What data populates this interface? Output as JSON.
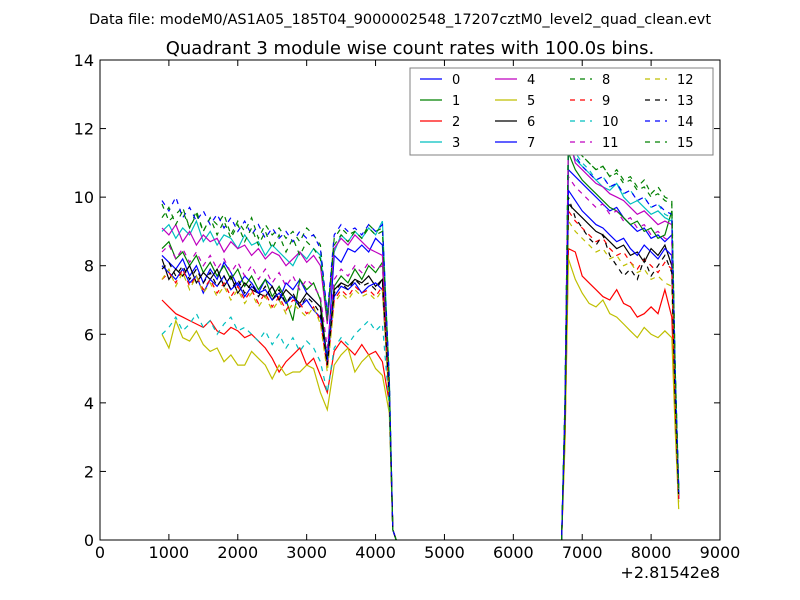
{
  "header": {
    "file_label": "Data file: modeM0/AS1A05_185T04_9000002548_17207cztM0_level2_quad_clean.evt",
    "title": "Quadrant 3 module wise count rates with 100.0s bins."
  },
  "chart_data": {
    "type": "line",
    "title": "Quadrant 3 module wise count rates with 100.0s bins.",
    "xlabel": "",
    "ylabel": "",
    "x_offset_label": "+2.81542e8",
    "xlim": [
      0,
      9000
    ],
    "ylim": [
      0,
      14
    ],
    "x_ticks": [
      0,
      1000,
      2000,
      3000,
      4000,
      5000,
      6000,
      7000,
      8000,
      9000
    ],
    "y_ticks": [
      0,
      2,
      4,
      6,
      8,
      10,
      12,
      14
    ],
    "grid": false,
    "legend_position": "top-right",
    "legend_columns": 4,
    "segment_x": [
      [
        900,
        1000,
        1100,
        1200,
        1300,
        1400,
        1500,
        1600,
        1700,
        1800,
        1900,
        2000,
        2100,
        2200,
        2300,
        2400,
        2500,
        2600,
        2700,
        2800,
        2900,
        3000,
        3100,
        3200,
        3300,
        3400,
        3500,
        3600,
        3700,
        3800,
        3900,
        4000,
        4100,
        4200,
        4250,
        4300
      ],
      [
        6700,
        6750,
        6800,
        6900,
        7000,
        7100,
        7200,
        7300,
        7400,
        7500,
        7600,
        7700,
        7800,
        7900,
        8000,
        8100,
        8200,
        8300,
        8350,
        8400
      ]
    ],
    "series": [
      {
        "name": "0",
        "color": "#0000ff",
        "dash": false,
        "segments": [
          [
            8.3,
            8.1,
            7.9,
            8.2,
            7.7,
            8.0,
            7.5,
            7.9,
            7.6,
            8.1,
            7.8,
            7.4,
            7.7,
            7.5,
            7.2,
            7.6,
            7.4,
            7.0,
            7.5,
            7.3,
            7.6,
            7.2,
            7.0,
            6.8,
            5.3,
            8.3,
            8.1,
            8.5,
            8.4,
            8.6,
            8.4,
            8.8,
            8.6,
            4.4,
            0.3,
            0
          ],
          [
            0,
            3.8,
            10.8,
            10.6,
            10.4,
            10.2,
            10.0,
            9.8,
            9.6,
            9.7,
            9.4,
            9.2,
            9.0,
            9.1,
            8.8,
            8.9,
            8.7,
            8.9,
            4.5,
            1.6
          ]
        ]
      },
      {
        "name": "1",
        "color": "#008000",
        "dash": false,
        "segments": [
          [
            8.5,
            8.7,
            8.2,
            8.4,
            8.0,
            8.3,
            7.8,
            8.1,
            7.7,
            8.0,
            7.6,
            7.9,
            7.4,
            7.7,
            7.3,
            7.6,
            7.1,
            7.4,
            7.0,
            6.4,
            7.6,
            7.3,
            7.5,
            7.0,
            5.2,
            7.4,
            7.7,
            7.5,
            7.9,
            7.6,
            8.0,
            7.8,
            8.1,
            4.3,
            0.3,
            0
          ],
          [
            0,
            3.9,
            11.3,
            10.8,
            10.5,
            10.3,
            10.1,
            9.9,
            9.7,
            9.6,
            9.4,
            9.2,
            9.3,
            9.0,
            9.1,
            8.8,
            8.9,
            9.6,
            5.0,
            1.3
          ]
        ]
      },
      {
        "name": "2",
        "color": "#ff0000",
        "dash": false,
        "segments": [
          [
            7.0,
            6.8,
            6.6,
            6.5,
            6.4,
            6.3,
            6.2,
            6.4,
            6.1,
            6.0,
            6.2,
            6.1,
            5.9,
            6.0,
            5.8,
            5.6,
            5.3,
            4.9,
            5.2,
            5.4,
            5.6,
            5.1,
            5.3,
            4.8,
            4.3,
            5.5,
            5.8,
            5.6,
            5.4,
            5.7,
            5.4,
            5.5,
            5.2,
            4.0,
            0.3,
            0
          ],
          [
            0,
            3.0,
            8.5,
            8.4,
            7.7,
            7.5,
            7.3,
            7.1,
            7.0,
            7.3,
            6.9,
            6.8,
            6.5,
            6.6,
            6.8,
            6.6,
            7.3,
            6.5,
            3.7,
            1.2
          ]
        ]
      },
      {
        "name": "3",
        "color": "#00bfbf",
        "dash": false,
        "segments": [
          [
            9.0,
            9.2,
            8.8,
            9.1,
            8.9,
            9.3,
            8.7,
            9.0,
            8.6,
            8.9,
            8.8,
            8.5,
            8.9,
            8.6,
            8.7,
            8.3,
            8.6,
            8.4,
            8.2,
            8.0,
            8.4,
            8.2,
            8.5,
            8.3,
            6.6,
            8.4,
            8.9,
            8.7,
            9.0,
            8.8,
            9.1,
            8.9,
            9.3,
            4.7,
            0.3,
            0
          ],
          [
            0,
            4.0,
            11.6,
            11.1,
            10.9,
            10.7,
            10.5,
            10.3,
            10.2,
            10.4,
            10.0,
            9.8,
            9.9,
            9.7,
            9.5,
            9.6,
            9.4,
            9.3,
            4.8,
            1.4
          ]
        ]
      },
      {
        "name": "4",
        "color": "#bf00bf",
        "dash": false,
        "segments": [
          [
            9.1,
            8.9,
            9.2,
            8.7,
            9.0,
            8.6,
            8.9,
            8.7,
            8.8,
            8.4,
            8.7,
            8.5,
            8.6,
            8.3,
            8.5,
            8.2,
            8.4,
            8.3,
            8.0,
            8.2,
            8.4,
            8.1,
            8.3,
            8.0,
            6.3,
            8.5,
            8.8,
            8.6,
            8.9,
            8.7,
            8.5,
            8.4,
            8.3,
            4.4,
            0.3,
            0
          ],
          [
            0,
            4.0,
            11.8,
            11.0,
            10.8,
            10.6,
            10.4,
            10.3,
            10.1,
            10.0,
            9.9,
            9.7,
            9.5,
            9.6,
            9.4,
            9.2,
            9.3,
            9.2,
            4.7,
            1.5
          ]
        ]
      },
      {
        "name": "5",
        "color": "#bfbf00",
        "dash": false,
        "segments": [
          [
            6.0,
            5.6,
            6.4,
            5.9,
            5.8,
            6.1,
            5.7,
            5.5,
            5.6,
            5.2,
            5.4,
            5.1,
            5.1,
            5.5,
            5.3,
            5.1,
            4.7,
            5.1,
            4.8,
            4.9,
            4.9,
            5.1,
            5.0,
            4.3,
            3.8,
            5.1,
            5.4,
            5.6,
            4.9,
            5.2,
            5.4,
            5.0,
            4.8,
            3.7,
            0.3,
            0
          ],
          [
            0,
            2.8,
            8.2,
            7.6,
            7.2,
            6.9,
            6.8,
            7.0,
            6.6,
            6.5,
            6.3,
            6.1,
            5.9,
            6.2,
            6.0,
            5.9,
            6.1,
            5.9,
            3.2,
            0.9
          ]
        ]
      },
      {
        "name": "6",
        "color": "#000000",
        "dash": false,
        "segments": [
          [
            8.2,
            7.6,
            7.9,
            7.7,
            8.0,
            7.5,
            7.8,
            7.6,
            7.9,
            7.4,
            7.7,
            7.2,
            7.5,
            7.3,
            7.2,
            7.1,
            7.4,
            7.0,
            7.3,
            7.1,
            6.9,
            7.2,
            7.0,
            6.8,
            5.1,
            7.3,
            7.5,
            7.4,
            7.6,
            7.5,
            7.7,
            7.4,
            7.6,
            4.2,
            0.3,
            0
          ],
          [
            0,
            3.5,
            9.8,
            9.6,
            9.4,
            9.2,
            9.0,
            8.9,
            8.7,
            8.5,
            8.6,
            8.3,
            8.4,
            8.1,
            8.5,
            8.3,
            8.6,
            8.0,
            4.2,
            1.3
          ]
        ]
      },
      {
        "name": "7",
        "color": "#0000ff",
        "dash": false,
        "segments": [
          [
            8.0,
            7.8,
            7.6,
            7.9,
            7.5,
            7.7,
            7.2,
            7.6,
            7.4,
            7.7,
            7.3,
            7.5,
            7.1,
            7.4,
            7.2,
            7.3,
            7.0,
            7.2,
            6.9,
            7.1,
            6.8,
            7.0,
            6.7,
            6.5,
            5.2,
            7.1,
            7.4,
            7.3,
            7.5,
            7.2,
            7.4,
            7.5,
            7.3,
            4.1,
            0.3,
            0
          ],
          [
            0,
            3.6,
            10.2,
            9.9,
            9.6,
            9.4,
            9.2,
            9.1,
            8.9,
            8.7,
            8.8,
            8.5,
            8.3,
            8.6,
            8.4,
            8.2,
            8.5,
            8.3,
            4.3,
            1.2
          ]
        ]
      },
      {
        "name": "8",
        "color": "#008000",
        "dash": true,
        "segments": [
          [
            9.8,
            9.3,
            9.5,
            9.7,
            9.1,
            9.6,
            9.0,
            9.4,
            9.2,
            9.5,
            8.9,
            9.3,
            9.0,
            9.4,
            8.8,
            9.2,
            8.9,
            9.1,
            8.8,
            9.0,
            8.7,
            9.1,
            8.9,
            8.6,
            6.5,
            8.8,
            9.1,
            8.9,
            9.0,
            8.8,
            9.2,
            9.0,
            9.1,
            4.6,
            0.3,
            0
          ],
          [
            0,
            4.1,
            11.7,
            11.4,
            11.2,
            11.0,
            10.8,
            10.9,
            10.6,
            10.8,
            10.5,
            10.6,
            10.3,
            10.5,
            10.1,
            10.3,
            10.0,
            9.9,
            5.0,
            1.5
          ]
        ]
      },
      {
        "name": "9",
        "color": "#ff0000",
        "dash": true,
        "segments": [
          [
            7.6,
            7.8,
            7.5,
            7.9,
            7.4,
            7.7,
            7.3,
            7.6,
            7.2,
            7.5,
            7.1,
            7.4,
            7.0,
            7.3,
            6.9,
            7.2,
            6.8,
            7.1,
            6.7,
            7.0,
            6.9,
            6.6,
            6.8,
            6.4,
            5.0,
            7.0,
            7.3,
            7.1,
            7.4,
            7.2,
            7.3,
            7.1,
            7.4,
            4.1,
            0.3,
            0
          ],
          [
            0,
            3.4,
            9.6,
            9.3,
            9.1,
            8.9,
            8.7,
            8.8,
            8.5,
            8.3,
            8.4,
            8.1,
            7.9,
            8.2,
            8.0,
            7.8,
            8.1,
            7.9,
            4.1,
            1.2
          ]
        ]
      },
      {
        "name": "10",
        "color": "#00bfbf",
        "dash": true,
        "segments": [
          [
            6.0,
            6.2,
            6.5,
            6.1,
            6.3,
            6.6,
            6.2,
            6.4,
            6.0,
            6.3,
            6.5,
            6.1,
            6.2,
            6.0,
            5.8,
            6.1,
            5.7,
            6.0,
            5.6,
            5.9,
            5.5,
            5.8,
            5.6,
            5.2,
            4.3,
            5.6,
            5.9,
            5.7,
            6.0,
            6.2,
            6.4,
            6.1,
            6.3,
            3.9,
            0.3,
            0
          ],
          [
            0,
            4.0,
            12.0,
            11.3,
            11.0,
            10.8,
            10.5,
            10.6,
            10.3,
            10.4,
            10.1,
            10.2,
            9.9,
            10.0,
            9.7,
            9.8,
            9.5,
            9.4,
            4.9,
            1.4
          ]
        ]
      },
      {
        "name": "11",
        "color": "#bf00bf",
        "dash": true,
        "segments": [
          [
            8.4,
            8.6,
            8.2,
            8.5,
            8.1,
            8.4,
            8.0,
            8.3,
            7.9,
            8.2,
            7.8,
            8.1,
            7.7,
            8.0,
            7.6,
            7.9,
            7.5,
            7.8,
            7.4,
            7.7,
            7.3,
            7.6,
            7.4,
            7.1,
            5.6,
            7.6,
            7.9,
            7.7,
            8.0,
            7.8,
            8.1,
            7.9,
            8.0,
            4.3,
            0.3,
            0
          ],
          [
            0,
            3.7,
            10.6,
            10.3,
            10.1,
            9.9,
            9.7,
            9.8,
            9.5,
            9.6,
            9.3,
            9.4,
            9.1,
            9.2,
            8.9,
            9.0,
            8.8,
            8.7,
            4.5,
            1.3
          ]
        ]
      },
      {
        "name": "12",
        "color": "#bfbf00",
        "dash": true,
        "segments": [
          [
            7.6,
            7.9,
            7.4,
            7.8,
            7.3,
            7.7,
            7.2,
            7.5,
            7.1,
            7.4,
            7.0,
            7.3,
            6.9,
            7.2,
            6.8,
            7.1,
            6.7,
            7.0,
            6.6,
            6.9,
            6.7,
            6.5,
            6.8,
            6.3,
            4.9,
            6.9,
            7.2,
            7.0,
            7.3,
            7.1,
            7.2,
            7.0,
            7.3,
            4.0,
            0.3,
            0
          ],
          [
            0,
            3.3,
            9.3,
            9.0,
            8.8,
            8.6,
            8.4,
            8.5,
            8.2,
            8.3,
            8.0,
            8.1,
            7.8,
            7.9,
            7.6,
            7.7,
            7.5,
            7.4,
            3.9,
            1.1
          ]
        ]
      },
      {
        "name": "13",
        "color": "#000000",
        "dash": true,
        "segments": [
          [
            7.9,
            8.1,
            7.7,
            8.0,
            7.6,
            7.9,
            7.5,
            7.8,
            7.4,
            7.7,
            7.3,
            7.6,
            7.2,
            7.5,
            7.1,
            7.4,
            7.0,
            7.3,
            6.9,
            7.2,
            6.8,
            7.1,
            6.9,
            6.6,
            5.1,
            7.2,
            7.5,
            7.3,
            7.6,
            7.4,
            7.5,
            7.3,
            7.6,
            4.2,
            0.3,
            0
          ],
          [
            0,
            3.5,
            10.0,
            9.4,
            9.1,
            8.8,
            8.6,
            8.9,
            8.3,
            8.0,
            7.7,
            7.9,
            7.6,
            8.2,
            7.7,
            8.0,
            8.3,
            7.8,
            4.0,
            1.2
          ]
        ]
      },
      {
        "name": "14",
        "color": "#0000ff",
        "dash": true,
        "segments": [
          [
            9.9,
            9.6,
            10.0,
            9.4,
            9.7,
            9.3,
            9.6,
            9.2,
            9.5,
            9.1,
            9.4,
            9.0,
            9.3,
            8.9,
            9.2,
            8.8,
            9.1,
            8.8,
            9.0,
            8.7,
            9.0,
            8.8,
            8.9,
            8.5,
            6.6,
            8.9,
            9.2,
            9.0,
            9.1,
            8.9,
            9.2,
            9.0,
            9.2,
            4.7,
            0.3,
            0
          ],
          [
            0,
            4.1,
            11.5,
            11.2,
            10.9,
            10.7,
            10.5,
            10.6,
            10.3,
            10.4,
            10.1,
            10.2,
            9.9,
            10.0,
            9.7,
            9.8,
            9.6,
            9.5,
            4.9,
            1.4
          ]
        ]
      },
      {
        "name": "15",
        "color": "#008000",
        "dash": true,
        "segments": [
          [
            9.4,
            9.7,
            9.2,
            9.6,
            9.1,
            9.5,
            9.0,
            9.4,
            8.9,
            9.3,
            8.8,
            9.2,
            8.7,
            9.1,
            8.6,
            9.0,
            8.5,
            8.9,
            8.4,
            8.8,
            8.3,
            8.7,
            8.5,
            8.2,
            6.4,
            8.6,
            8.9,
            8.7,
            9.0,
            8.8,
            9.1,
            8.9,
            9.0,
            4.6,
            0.3,
            0
          ],
          [
            0,
            4.0,
            11.9,
            11.5,
            11.2,
            11.0,
            10.8,
            10.9,
            10.6,
            10.7,
            10.4,
            10.5,
            10.2,
            10.3,
            10.0,
            10.1,
            9.9,
            9.8,
            5.0,
            1.5
          ]
        ]
      }
    ]
  }
}
